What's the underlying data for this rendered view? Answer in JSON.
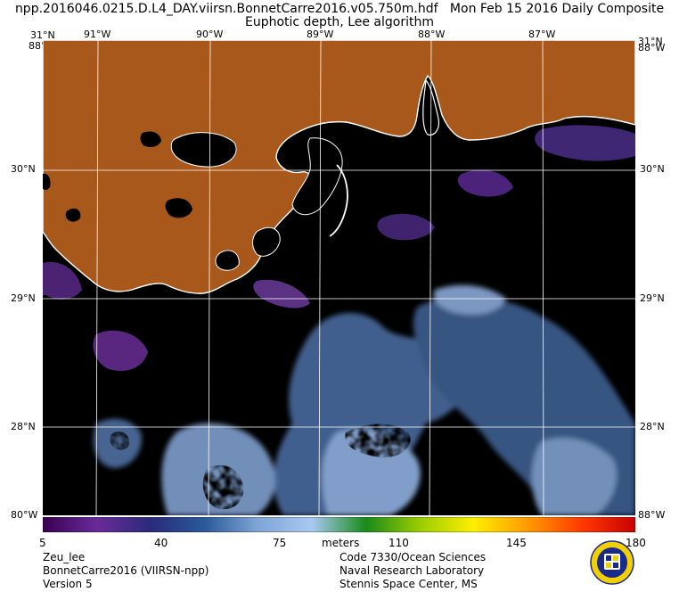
{
  "header": {
    "filename": "npp.2016046.0215.D.L4_DAY.viirsn.BonnetCarre2016.v05.750m.hdf",
    "composite": "Mon Feb 15 2016 Daily Composite",
    "product": "Euphotic depth, Lee algorithm"
  },
  "map": {
    "lon_labels": [
      "91°W",
      "90°W",
      "89°W",
      "88°W",
      "87°W"
    ],
    "lat_labels": [
      "30°N",
      "29°N",
      "28°N"
    ],
    "corner_top_left": "31°N",
    "corner_top_right": "31°N",
    "corner_edge_top": "88°W",
    "corner_edge_bottom": "80°W",
    "corner_edge_bottom_right": "88°W",
    "land_color": "#a9581c",
    "water_nodata_color": "#000000",
    "coast_color": "#ffffff",
    "grid_color": "#ffffff"
  },
  "colorbar": {
    "ticks": [
      "5",
      "40",
      "75",
      "110",
      "145",
      "180"
    ],
    "units": "meters",
    "range": [
      5,
      180
    ],
    "palette": [
      "#3a0050",
      "#6a2a9a",
      "#2a2a7a",
      "#2a5a9a",
      "#7fa6d6",
      "#a8c8f0",
      "#1a8a1a",
      "#9acd00",
      "#ffee00",
      "#ff9a00",
      "#ff3a00",
      "#c80000"
    ]
  },
  "footer": {
    "left": [
      "Zeu_lee",
      "BonnetCarre2016 (VIIRSN-npp)",
      "Version 5"
    ],
    "right": [
      "Code 7330/Ocean Sciences",
      "Naval Research Laboratory",
      "Stennis Space Center, MS"
    ]
  }
}
